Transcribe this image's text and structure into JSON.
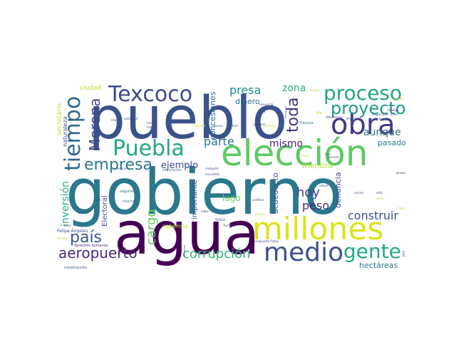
{
  "palette": {
    "dark_purple": "#440154",
    "indigo": "#414487",
    "blue": "#2a788e",
    "teal": "#22a884",
    "green": "#7ad151",
    "lime": "#bddf26",
    "yellow": "#fde725"
  },
  "words": [
    {
      "id": "gobierno",
      "text": "gobierno",
      "weight": 1.0,
      "color": "#2a788e"
    },
    {
      "id": "pueblo",
      "text": "pueblo",
      "weight": 0.95,
      "color": "#3b528b"
    },
    {
      "id": "agua",
      "text": "agua",
      "weight": 0.9,
      "color": "#440154"
    },
    {
      "id": "eleccion",
      "text": "elección",
      "weight": 0.7,
      "color": "#5ec962"
    },
    {
      "id": "millones",
      "text": "millones",
      "weight": 0.62,
      "color": "#dde318"
    },
    {
      "id": "obra",
      "text": "obra",
      "weight": 0.55,
      "color": "#443a83"
    },
    {
      "id": "medio",
      "text": "medio",
      "weight": 0.52,
      "color": "#3b528b"
    },
    {
      "id": "proceso",
      "text": "proceso",
      "weight": 0.45,
      "color": "#21a585"
    },
    {
      "id": "texcoco",
      "text": "Texcoco",
      "weight": 0.42,
      "color": "#3e4a89"
    },
    {
      "id": "puebla",
      "text": "Puebla",
      "weight": 0.42,
      "color": "#22a884"
    },
    {
      "id": "proyecto",
      "text": "proyecto",
      "weight": 0.4,
      "color": "#1f988b"
    },
    {
      "id": "tiempo",
      "text": "tiempo",
      "weight": 0.42,
      "color": "#31688e"
    },
    {
      "id": "gente",
      "text": "gente",
      "weight": 0.4,
      "color": "#22a884"
    },
    {
      "id": "empresa",
      "text": "empresa",
      "weight": 0.35,
      "color": "#2a788e"
    },
    {
      "id": "aeropuerto",
      "text": "aeropuerto",
      "weight": 0.3,
      "color": "#482878"
    },
    {
      "id": "corrupcion",
      "text": "corrupción",
      "weight": 0.28,
      "color": "#35b779"
    },
    {
      "id": "morena",
      "text": "Morena",
      "weight": 0.28,
      "color": "#3e4a89"
    },
    {
      "id": "pais",
      "text": "país",
      "weight": 0.3,
      "color": "#39568c"
    },
    {
      "id": "toda",
      "text": "toda",
      "weight": 0.28,
      "color": "#46337f"
    },
    {
      "id": "hoy",
      "text": "hoy",
      "weight": 0.25,
      "color": "#443a83"
    },
    {
      "id": "peso",
      "text": "peso",
      "weight": 0.24,
      "color": "#472c7a"
    },
    {
      "id": "aunque",
      "text": "aunque",
      "weight": 0.22,
      "color": "#2c728e"
    },
    {
      "id": "construir",
      "text": "construir",
      "weight": 0.22,
      "color": "#3b528b"
    },
    {
      "id": "presa",
      "text": "presa",
      "weight": 0.2,
      "color": "#23898e"
    },
    {
      "id": "zona",
      "text": "zona",
      "weight": 0.18,
      "color": "#2ab07f"
    },
    {
      "id": "parte",
      "text": "parte",
      "weight": 0.2,
      "color": "#2a788e"
    },
    {
      "id": "mismo",
      "text": "mismo",
      "weight": 0.18,
      "color": "#482173"
    },
    {
      "id": "ejemplo",
      "text": "ejemplo",
      "weight": 0.17,
      "color": "#3e4a89"
    },
    {
      "id": "cargo",
      "text": "cargo",
      "weight": 0.2,
      "color": "#5ec962"
    },
    {
      "id": "inversion",
      "text": "inversión",
      "weight": 0.17,
      "color": "#2ab07f"
    },
    {
      "id": "mentira",
      "text": "mentira",
      "weight": 0.13,
      "color": "#b5de2b"
    },
    {
      "id": "denuncia",
      "text": "denuncia",
      "weight": 0.14,
      "color": "#3e4a89"
    },
    {
      "id": "pasado",
      "text": "pasado",
      "weight": 0.13,
      "color": "#287d8e"
    },
    {
      "id": "lago",
      "text": "lago",
      "weight": 0.15,
      "color": "#6ece58"
    },
    {
      "id": "dinero",
      "text": "dinero",
      "weight": 0.13,
      "color": "#2c728e"
    },
    {
      "id": "concesiones",
      "text": "concesiones",
      "weight": 0.12,
      "color": "#2c728e"
    },
    {
      "id": "hectareas",
      "text": "hectáreas",
      "weight": 0.12,
      "color": "#2c728e"
    },
    {
      "id": "acueducto",
      "text": "acueducto",
      "weight": 0.12,
      "color": "#3b528b"
    },
    {
      "id": "ciudad",
      "text": "ciudad",
      "weight": 0.11,
      "color": "#b5de2b"
    },
    {
      "id": "naturaleza",
      "text": "naturaleza",
      "weight": 0.09,
      "color": "#3b528b"
    },
    {
      "id": "secretario",
      "text": "secretario",
      "weight": 0.1,
      "color": "#b5de2b"
    },
    {
      "id": "importante",
      "text": "importante",
      "weight": 0.11,
      "color": "#3e4a89"
    },
    {
      "id": "electoral",
      "text": "Electoral",
      "weight": 0.11,
      "color": "#3b528b"
    },
    {
      "id": "sabemos",
      "text": "sabemos",
      "weight": 0.1,
      "color": "#b5de2b"
    },
    {
      "id": "felipe_angeles",
      "text": "Felipe Ángeles",
      "weight": 0.07,
      "color": "#3b528b"
    },
    {
      "id": "derechos_humanos",
      "text": "derechos humanos",
      "weight": 0.06,
      "color": "#482878"
    },
    {
      "id": "construccion",
      "text": "construcción",
      "weight": 0.05,
      "color": "#3b528b"
    },
    {
      "id": "tlayuca",
      "text": "Tlayuca",
      "weight": 0.06,
      "color": "#2c728e"
    },
    {
      "id": "monterrey",
      "text": "Monterrey",
      "weight": 0.05,
      "color": "#46337f"
    },
    {
      "id": "seguridad",
      "text": "Seguridad",
      "weight": 0.05,
      "color": "#3e4a89"
    },
    {
      "id": "cerro_prieto",
      "text": "Cerro Prieto",
      "weight": 0.05,
      "color": "#31688e"
    },
    {
      "id": "inicio",
      "text": "inició",
      "weight": 0.04,
      "color": "#3e4a89"
    },
    {
      "id": "hidalgo",
      "text": "Hidalgo",
      "weight": 0.04,
      "color": "#3e4a89"
    },
    {
      "id": "renuncia",
      "text": "renuncia",
      "weight": 0.05,
      "color": "#3e4a89"
    },
    {
      "id": "hizo",
      "text": "hizo",
      "weight": 0.05,
      "color": "#3b528b"
    },
    {
      "id": "ultimo",
      "text": "último",
      "weight": 0.04,
      "color": "#3b528b"
    },
    {
      "id": "decision",
      "text": "decisión",
      "weight": 0.04,
      "color": "#3b528b"
    },
    {
      "id": "primero",
      "text": "primero",
      "weight": 0.04,
      "color": "#482878"
    },
    {
      "id": "segundo",
      "text": "segundo",
      "weight": 0.05,
      "color": "#2c728e"
    },
    {
      "id": "muchas",
      "text": "muchas",
      "weight": 0.05,
      "color": "#2c728e"
    },
    {
      "id": "publico",
      "text": "público",
      "weight": 0.04,
      "color": "#3b528b"
    },
    {
      "id": "valle",
      "text": "Valle",
      "weight": 0.04,
      "color": "#3b528b"
    },
    {
      "id": "video",
      "text": "VIDEO",
      "weight": 0.04,
      "color": "#3b528b"
    },
    {
      "id": "tuchilla",
      "text": "Tuchilla",
      "weight": 0.04,
      "color": "#3b528b"
    },
    {
      "id": "politico",
      "text": "político",
      "weight": 0.04,
      "color": "#3b528b"
    },
    {
      "id": "veces",
      "text": "veces",
      "weight": 0.04,
      "color": "#3b528b"
    },
    {
      "id": "solo",
      "text": "sólo",
      "weight": 0.04,
      "color": "#3b528b"
    },
    {
      "id": "aeropuerto_felipe",
      "text": "aeropuerto Felipe",
      "weight": 0.04,
      "color": "#3b528b"
    },
    {
      "id": "grupo",
      "text": "grupo",
      "weight": 0.04,
      "color": "#3b528b"
    },
    {
      "id": "jefe",
      "text": "jefe",
      "weight": 0.04,
      "color": "#3b528b"
    },
    {
      "id": "area",
      "text": "área",
      "weight": 0.04,
      "color": "#3b528b"
    },
    {
      "id": "tercera",
      "text": "tercera",
      "weight": 0.04,
      "color": "#b5de2b"
    },
    {
      "id": "informacion",
      "text": "información",
      "weight": 0.04,
      "color": "#3b528b"
    },
    {
      "id": "entregaron",
      "text": "entregaron",
      "weight": 0.03,
      "color": "#3b528b"
    },
    {
      "id": "trabajo",
      "text": "trabajo",
      "weight": 0.04,
      "color": "#3b528b"
    },
    {
      "id": "hecho",
      "text": "hecho",
      "weight": 0.04,
      "color": "#3b528b"
    },
    {
      "id": "mejor",
      "text": "mejor",
      "weight": 0.04,
      "color": "#3b528b"
    },
    {
      "id": "gobierno_federal",
      "text": "gobierno federal",
      "weight": 0.03,
      "color": "#3b528b"
    },
    {
      "id": "salud",
      "text": "salud",
      "weight": 0.04,
      "color": "#3b528b"
    },
    {
      "id": "vez",
      "text": "vez",
      "weight": 0.04,
      "color": "#3b528b"
    },
    {
      "id": "cosa",
      "text": "cosa",
      "weight": 0.04,
      "color": "#3b528b"
    },
    {
      "id": "universal",
      "text": "universal",
      "weight": 0.03,
      "color": "#3b528b"
    },
    {
      "id": "encuestas",
      "text": "encuestas",
      "weight": 0.03,
      "color": "#3b528b"
    },
    {
      "id": "campaña",
      "text": "campaña",
      "weight": 0.03,
      "color": "#3b528b"
    },
    {
      "id": "autoridad",
      "text": "autoridad",
      "weight": 0.03,
      "color": "#3b528b"
    },
    {
      "id": "dia",
      "text": "día",
      "weight": 0.04,
      "color": "#b5de2b"
    },
    {
      "id": "elizabeth",
      "text": "Elizabeth",
      "weight": 0.03,
      "color": "#b5de2b"
    },
    {
      "id": "cambio",
      "text": "cambio",
      "weight": 0.03,
      "color": "#b5de2b"
    },
    {
      "id": "sabe",
      "text": "sabe",
      "weight": 0.03,
      "color": "#3b528b"
    },
    {
      "id": "falso",
      "text": "falso",
      "weight": 0.03,
      "color": "#b5de2b"
    },
    {
      "id": "directo",
      "text": "directo",
      "weight": 0.03,
      "color": "#b5de2b"
    },
    {
      "id": "radio",
      "text": "radio",
      "weight": 0.03,
      "color": "#b5de2b"
    },
    {
      "id": "claro",
      "text": "claro",
      "weight": 0.03,
      "color": "#b5de2b"
    },
    {
      "id": "desayuno",
      "text": "desayuno",
      "weight": 0.03,
      "color": "#3b528b"
    },
    {
      "id": "primera",
      "text": "primera",
      "weight": 0.03,
      "color": "#b5de2b"
    },
    {
      "id": "cuenta",
      "text": "cuenta",
      "weight": 0.03,
      "color": "#b5de2b"
    },
    {
      "id": "primero2",
      "text": "primero",
      "weight": 0.03,
      "color": "#3b528b"
    },
    {
      "id": "nuevo",
      "text": "nuevo",
      "weight": 0.03,
      "color": "#3b528b"
    }
  ]
}
